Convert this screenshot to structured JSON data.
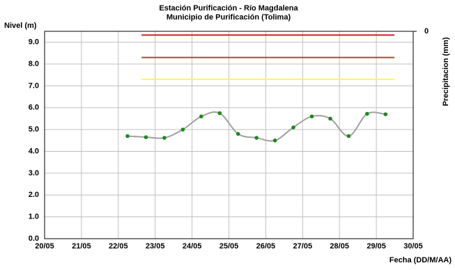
{
  "chart_data": {
    "type": "line",
    "title": "Estación Purificación - Río Magdalena",
    "subtitle": "Municipio de Purificación (Tolima)",
    "y_label": "Nivel (m)",
    "y2_label": "Precipitacion (mm)",
    "x_label": "Fecha (DD/M/AA)",
    "xlim": [
      20,
      30
    ],
    "xticks": [
      {
        "value": 20,
        "label": "20/05"
      },
      {
        "value": 21,
        "label": "21/05"
      },
      {
        "value": 22,
        "label": "22/05"
      },
      {
        "value": 23,
        "label": "23/05"
      },
      {
        "value": 24,
        "label": "24/05"
      },
      {
        "value": 25,
        "label": "25/05"
      },
      {
        "value": 26,
        "label": "26/05"
      },
      {
        "value": 27,
        "label": "27/05"
      },
      {
        "value": 28,
        "label": "28/05"
      },
      {
        "value": 29,
        "label": "29/05"
      },
      {
        "value": 30,
        "label": "30/05"
      }
    ],
    "ylim": [
      0,
      9.5
    ],
    "yticks": [
      {
        "value": 0,
        "label": "0.0"
      },
      {
        "value": 1,
        "label": "1.0"
      },
      {
        "value": 2,
        "label": "2.0"
      },
      {
        "value": 3,
        "label": "3.0"
      },
      {
        "value": 4,
        "label": "4.0"
      },
      {
        "value": 5,
        "label": "5.0"
      },
      {
        "value": 6,
        "label": "6.0"
      },
      {
        "value": 7,
        "label": "7.0"
      },
      {
        "value": 8,
        "label": "8.0"
      },
      {
        "value": 9,
        "label": "9.0"
      }
    ],
    "y2lim": [
      0,
      10
    ],
    "y2_inverted": true,
    "y2ticks": [
      0
    ],
    "grid": true,
    "series": [
      {
        "color": "#cc2020",
        "x": [
          22.63,
          29.49
        ],
        "values": [
          9.33,
          9.33
        ],
        "marker": false,
        "smooth": false
      },
      {
        "color": "#a0522d",
        "x": [
          22.63,
          29.49
        ],
        "values": [
          8.3,
          8.3
        ],
        "marker": false,
        "smooth": false
      },
      {
        "color": "#ffff40",
        "x": [
          22.63,
          29.49
        ],
        "values": [
          7.3,
          7.3
        ],
        "marker": false,
        "smooth": false
      },
      {
        "color": "#a0a0a0",
        "marker_color": "#1a8a1a",
        "marker": true,
        "smooth": true,
        "x": [
          22.25,
          22.75,
          23.25,
          23.75,
          24.25,
          24.75,
          25.25,
          25.75,
          26.25,
          26.75,
          27.25,
          27.75,
          28.25,
          28.75,
          29.25
        ],
        "values": [
          4.7,
          4.65,
          4.62,
          5.0,
          5.6,
          5.75,
          4.8,
          4.62,
          4.5,
          5.1,
          5.6,
          5.5,
          4.7,
          5.72,
          5.7
        ]
      }
    ]
  }
}
